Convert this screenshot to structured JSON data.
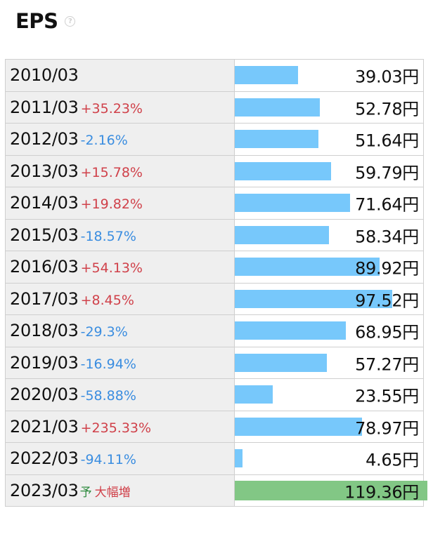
{
  "header": {
    "title": "EPS",
    "help_icon": "question-circle-icon"
  },
  "colors": {
    "bar_actual": "#77c8fb",
    "bar_forecast": "#82c785",
    "increase": "#d0414a",
    "decrease": "#3a8de0",
    "forecast_mark": "#2d8a3e"
  },
  "chart_data": {
    "type": "bar",
    "orientation": "horizontal",
    "title": "EPS",
    "unit": "円",
    "categories": [
      "2010/03",
      "2011/03",
      "2012/03",
      "2013/03",
      "2014/03",
      "2015/03",
      "2016/03",
      "2017/03",
      "2018/03",
      "2019/03",
      "2020/03",
      "2021/03",
      "2022/03",
      "2023/03"
    ],
    "values": [
      39.03,
      52.78,
      51.64,
      59.79,
      71.64,
      58.34,
      89.92,
      97.52,
      68.95,
      57.27,
      23.55,
      78.97,
      4.65,
      119.36
    ],
    "value_labels": [
      "39.03円",
      "52.78円",
      "51.64円",
      "59.79円",
      "71.64円",
      "58.34円",
      "89.92円",
      "97.52円",
      "68.95円",
      "57.27円",
      "23.55円",
      "78.97円",
      "4.65円",
      "119.36円"
    ],
    "changes": [
      "",
      "+35.23%",
      "-2.16%",
      "+15.78%",
      "+19.82%",
      "-18.57%",
      "+54.13%",
      "+8.45%",
      "-29.3%",
      "-16.94%",
      "-58.88%",
      "+235.33%",
      "-94.11%",
      ""
    ],
    "forecast": [
      false,
      false,
      false,
      false,
      false,
      false,
      false,
      false,
      false,
      false,
      false,
      false,
      false,
      true
    ],
    "forecast_mark": "予",
    "forecast_note": "大幅増"
  }
}
